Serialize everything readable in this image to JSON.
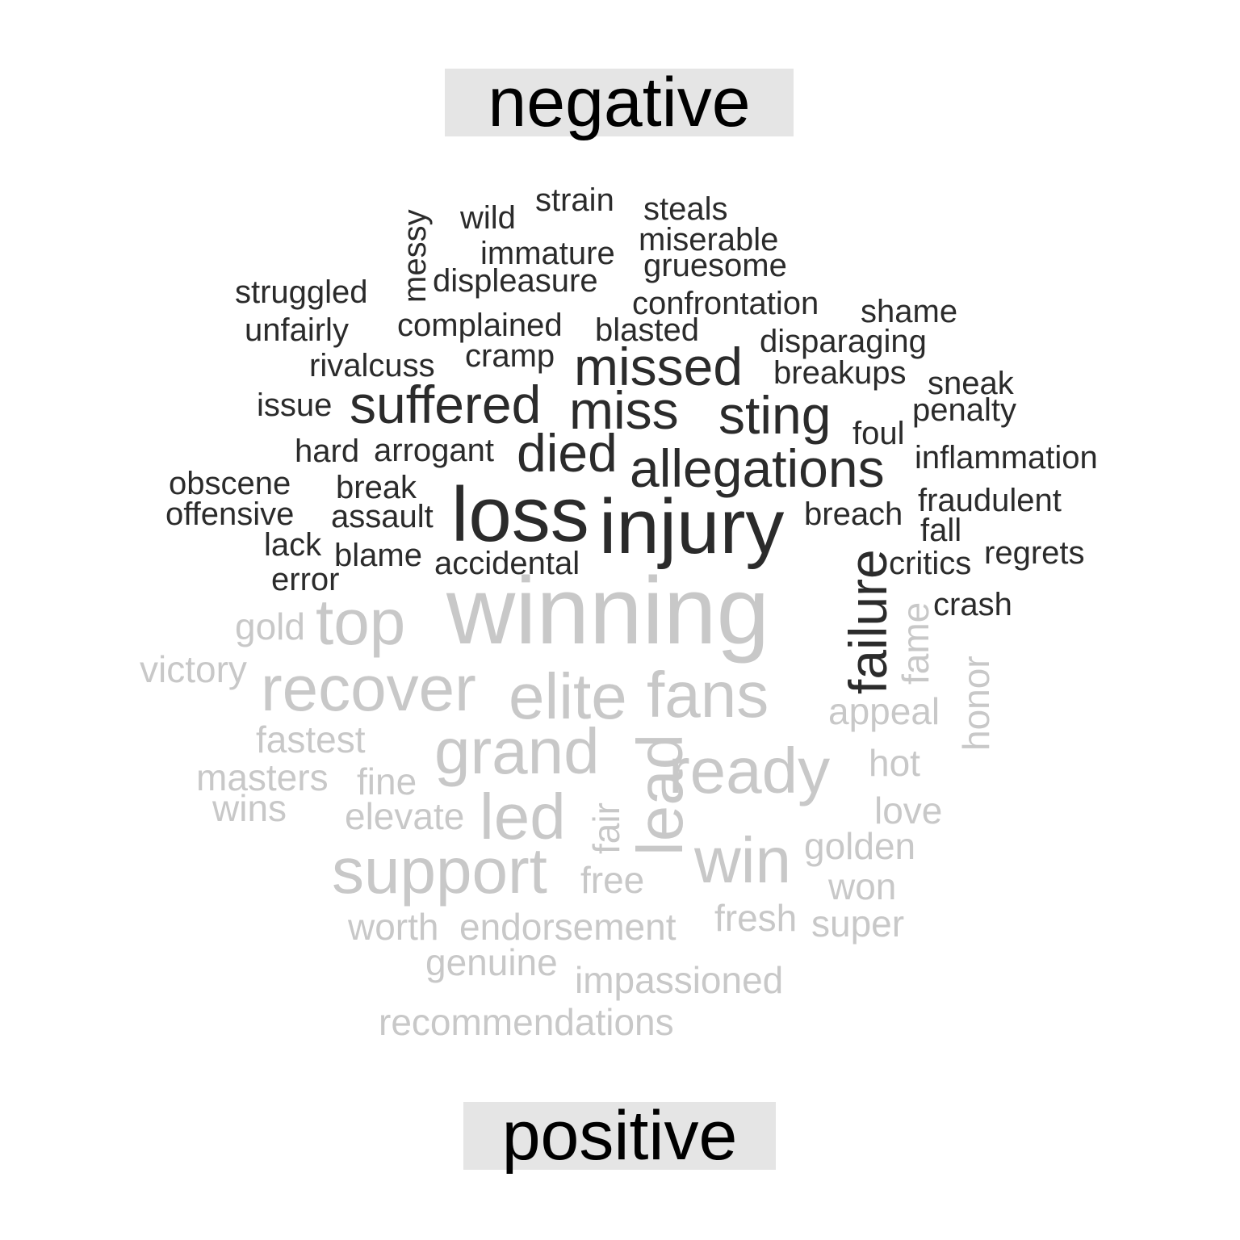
{
  "chart_data": {
    "type": "wordcloud",
    "colors": {
      "negative": "#2b2b2b",
      "positive": "#c8c8c8",
      "label_bg": "#e5e5e5"
    },
    "groups": [
      {
        "name": "negative",
        "words": [
          "strain",
          "wild",
          "steals",
          "messy",
          "miserable",
          "immature",
          "gruesome",
          "struggled",
          "displeasure",
          "confrontation",
          "shame",
          "unfairly",
          "complained",
          "blasted",
          "disparaging",
          "rivalcuss",
          "cramp",
          "missed",
          "breakups",
          "sneak",
          "issue",
          "suffered",
          "miss",
          "sting",
          "penalty",
          "foul",
          "hard",
          "arrogant",
          "died",
          "allegations",
          "inflammation",
          "obscene",
          "break",
          "fraudulent",
          "offensive",
          "assault",
          "loss",
          "injury",
          "breach",
          "fall",
          "lack",
          "failure",
          "blame",
          "accidental",
          "critics",
          "regrets",
          "error",
          "crash"
        ]
      },
      {
        "name": "positive",
        "words": [
          "gold",
          "top",
          "winning",
          "fame",
          "victory",
          "honor",
          "recover",
          "elite",
          "fans",
          "appeal",
          "fastest",
          "grand",
          "lead",
          "ready",
          "hot",
          "masters",
          "fine",
          "wins",
          "elevate",
          "led",
          "fair",
          "love",
          "golden",
          "support",
          "win",
          "free",
          "won",
          "worth",
          "endorsement",
          "fresh",
          "super",
          "genuine",
          "impassioned",
          "recommendations"
        ]
      }
    ]
  }
}
